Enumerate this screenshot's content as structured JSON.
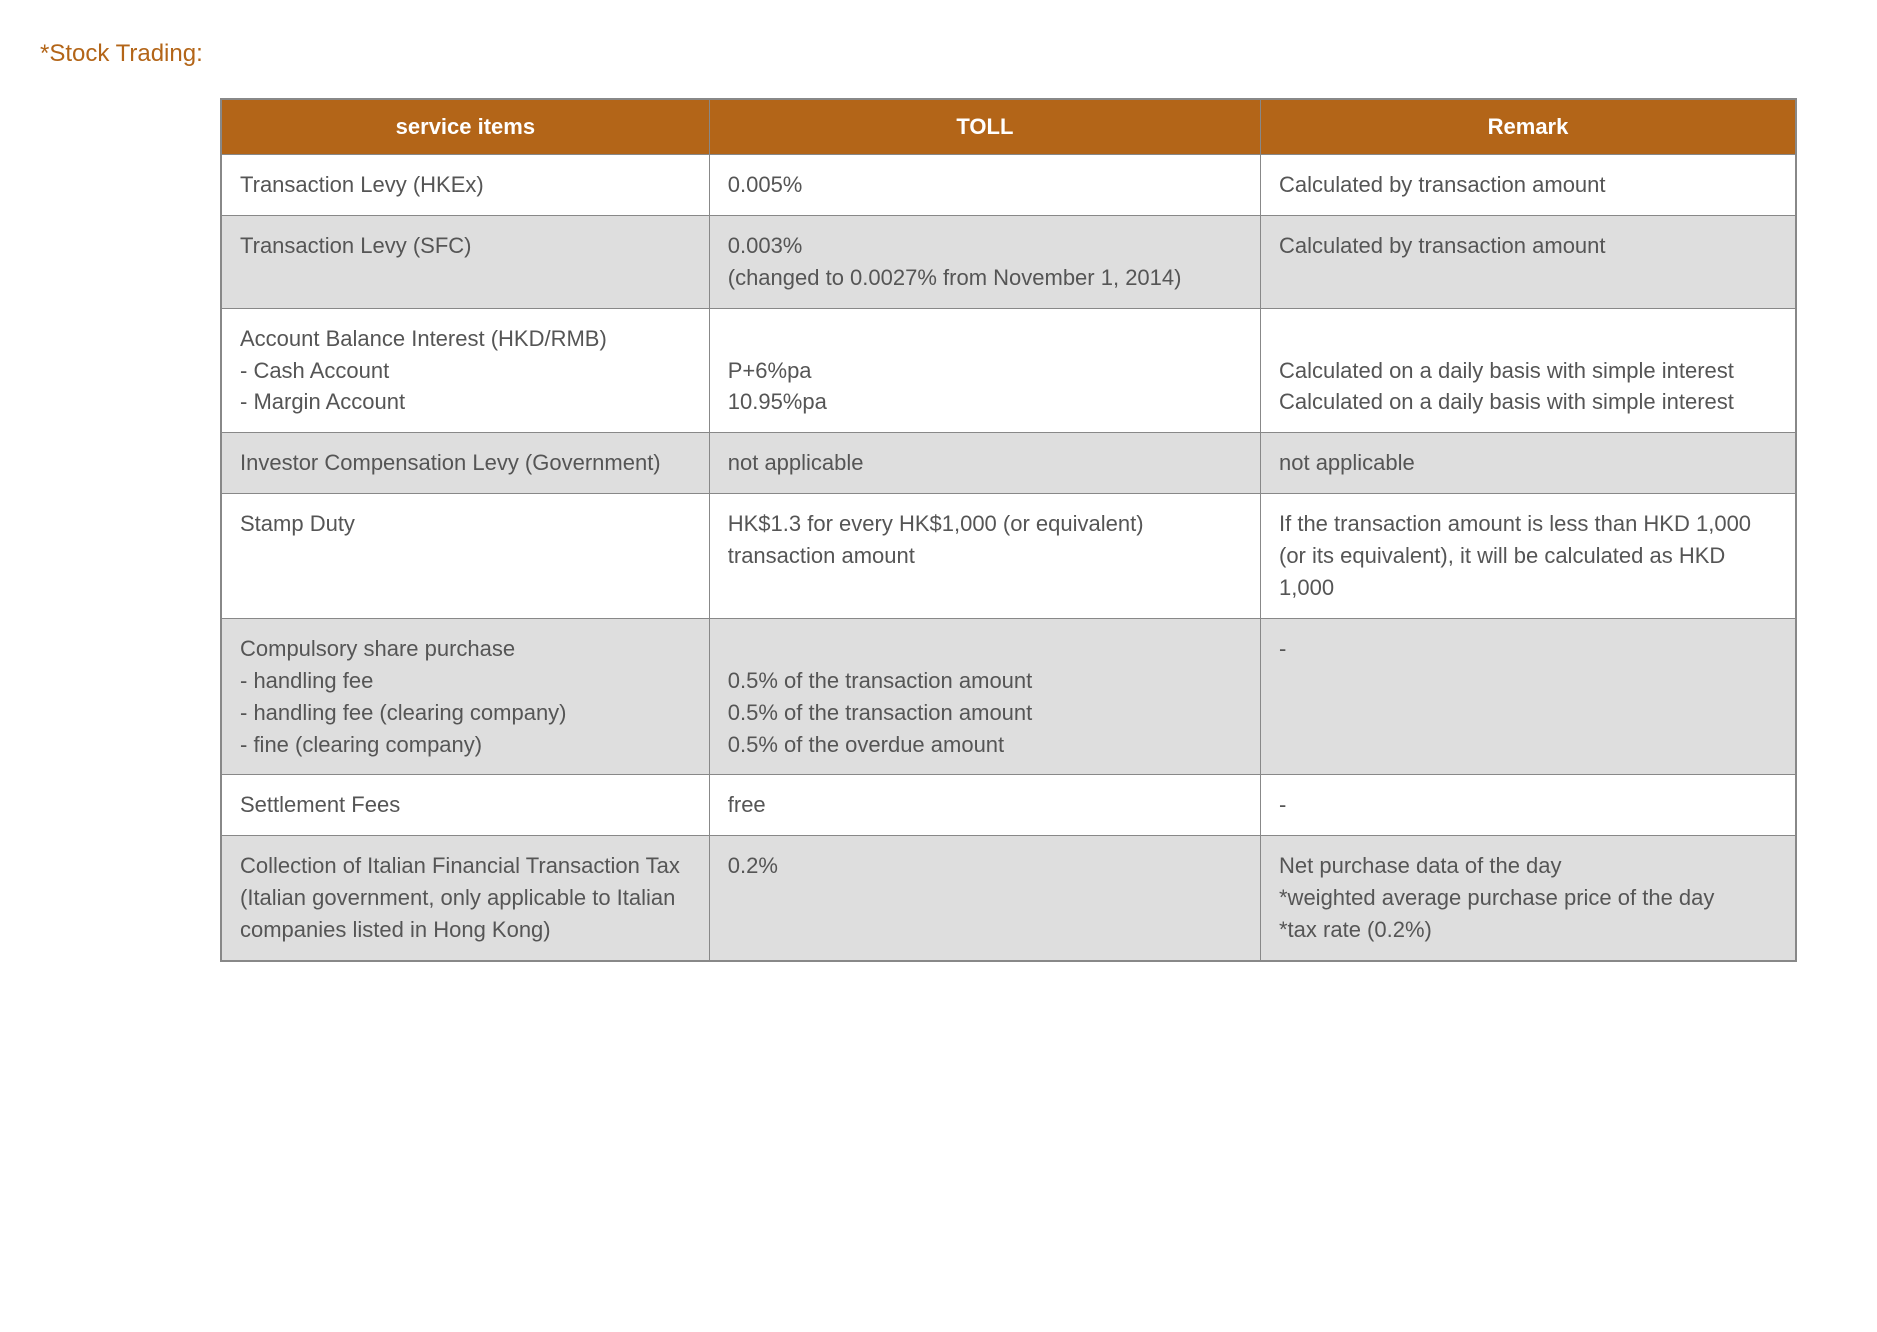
{
  "title": "*Stock Trading:",
  "table": {
    "headers": {
      "service": "service items",
      "toll": "TOLL",
      "remark": "Remark"
    },
    "rows": [
      {
        "service": "Transaction Levy (HKEx)",
        "toll": "0.005%",
        "remark": "Calculated by transaction amount"
      },
      {
        "service": "Transaction Levy (SFC)",
        "toll": "0.003%\n(changed to 0.0027% from November 1, 2014)",
        "remark": "Calculated by transaction amount"
      },
      {
        "service": "Account Balance Interest (HKD/RMB)\n- Cash Account\n- Margin Account",
        "toll": "\nP+6%pa\n10.95%pa",
        "remark": "\nCalculated on a daily basis with simple interest\nCalculated on a daily basis with simple interest"
      },
      {
        "service": "Investor Compensation Levy (Government)",
        "toll": "not applicable",
        "remark": "not applicable"
      },
      {
        "service": "Stamp Duty",
        "toll": "HK$1.3 for every HK$1,000 (or equivalent) transaction amount",
        "remark": "If the transaction amount is less than HKD 1,000 (or its equivalent), it will be calculated as HKD 1,000"
      },
      {
        "service": "Compulsory share purchase\n- handling fee\n- handling fee (clearing company)\n- fine (clearing company)",
        "toll": "\n0.5% of the transaction amount\n0.5% of the transaction amount\n0.5% of the overdue amount",
        "remark": "-"
      },
      {
        "service": "Settlement Fees",
        "toll": "free",
        "remark": "-"
      },
      {
        "service": "Collection of Italian Financial Transaction Tax\n(Italian government, only applicable to Italian companies listed in Hong Kong)",
        "toll": "0.2%",
        "remark": "Net purchase data of the day\n*weighted average purchase price of the day\n*tax rate (0.2%)"
      }
    ]
  },
  "styling": {
    "title_color": "#b36518",
    "header_bg": "#b36518",
    "header_text_color": "#ffffff",
    "row_odd_bg": "#ffffff",
    "row_even_bg": "#dedede",
    "border_color": "#888888",
    "cell_text_color": "#555555",
    "title_fontsize": 24,
    "header_fontsize": 22,
    "cell_fontsize": 22
  }
}
